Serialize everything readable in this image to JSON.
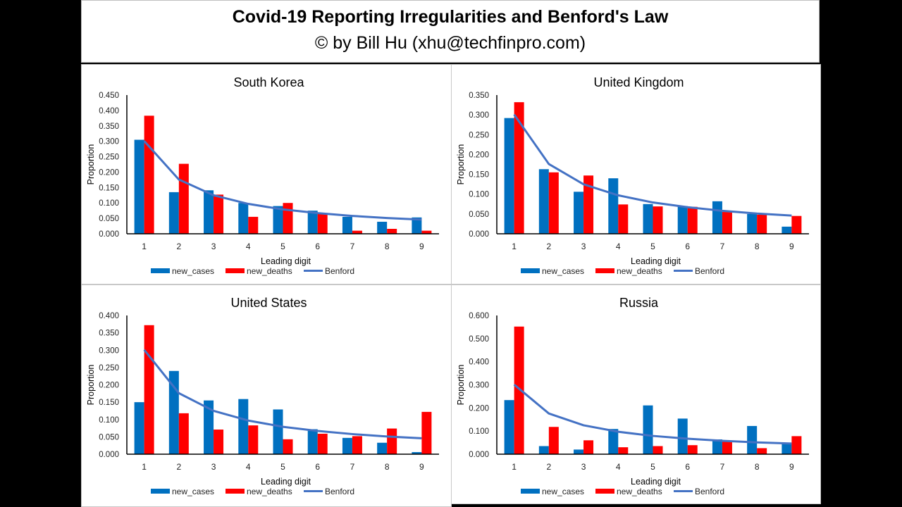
{
  "header": {
    "title": "Covid-19 Reporting Irregularities and Benford's Law",
    "subtitle": "© by Bill Hu (xhu@techfinpro.com)"
  },
  "colors": {
    "new_cases": "#0070C0",
    "new_deaths": "#FF0000",
    "Benford": "#4472C4"
  },
  "chart_data": [
    {
      "type": "bar",
      "title": "South Korea",
      "xlabel": "Leading digit",
      "ylabel": "Proportion",
      "categories": [
        "1",
        "2",
        "3",
        "4",
        "5",
        "6",
        "7",
        "8",
        "9"
      ],
      "ylim": [
        0,
        0.45
      ],
      "yticks": [
        "0.000",
        "0.050",
        "0.100",
        "0.150",
        "0.200",
        "0.250",
        "0.300",
        "0.350",
        "0.400",
        "0.450"
      ],
      "legend": "bottom",
      "series": [
        {
          "name": "new_cases",
          "kind": "bar",
          "values": [
            0.305,
            0.135,
            0.141,
            0.1,
            0.09,
            0.075,
            0.055,
            0.039,
            0.053
          ]
        },
        {
          "name": "new_deaths",
          "kind": "bar",
          "values": [
            0.383,
            0.227,
            0.127,
            0.055,
            0.1,
            0.065,
            0.01,
            0.016,
            0.01
          ]
        },
        {
          "name": "Benford",
          "kind": "line",
          "values": [
            0.301,
            0.176,
            0.125,
            0.097,
            0.079,
            0.067,
            0.058,
            0.051,
            0.046
          ]
        }
      ]
    },
    {
      "type": "bar",
      "title": "United Kingdom",
      "xlabel": "Leading digit",
      "ylabel": "Proportion",
      "categories": [
        "1",
        "2",
        "3",
        "4",
        "5",
        "6",
        "7",
        "8",
        "9"
      ],
      "ylim": [
        0,
        0.35
      ],
      "yticks": [
        "0.000",
        "0.050",
        "0.100",
        "0.150",
        "0.200",
        "0.250",
        "0.300",
        "0.350"
      ],
      "legend": "bottom",
      "series": [
        {
          "name": "new_cases",
          "kind": "bar",
          "values": [
            0.292,
            0.163,
            0.106,
            0.14,
            0.075,
            0.07,
            0.082,
            0.05,
            0.018
          ]
        },
        {
          "name": "new_deaths",
          "kind": "bar",
          "values": [
            0.332,
            0.155,
            0.147,
            0.074,
            0.069,
            0.068,
            0.055,
            0.048,
            0.045
          ]
        },
        {
          "name": "Benford",
          "kind": "line",
          "values": [
            0.301,
            0.176,
            0.125,
            0.097,
            0.079,
            0.067,
            0.058,
            0.051,
            0.046
          ]
        }
      ]
    },
    {
      "type": "bar",
      "title": "United States",
      "xlabel": "Leading digit",
      "ylabel": "Proportion",
      "categories": [
        "1",
        "2",
        "3",
        "4",
        "5",
        "6",
        "7",
        "8",
        "9"
      ],
      "ylim": [
        0,
        0.4
      ],
      "yticks": [
        "0.000",
        "0.050",
        "0.100",
        "0.150",
        "0.200",
        "0.250",
        "0.300",
        "0.350",
        "0.400"
      ],
      "legend": "bottom",
      "series": [
        {
          "name": "new_cases",
          "kind": "bar",
          "values": [
            0.15,
            0.24,
            0.155,
            0.159,
            0.129,
            0.072,
            0.047,
            0.033,
            0.006
          ]
        },
        {
          "name": "new_deaths",
          "kind": "bar",
          "values": [
            0.372,
            0.118,
            0.071,
            0.083,
            0.043,
            0.059,
            0.052,
            0.074,
            0.122
          ]
        },
        {
          "name": "Benford",
          "kind": "line",
          "values": [
            0.301,
            0.176,
            0.125,
            0.097,
            0.079,
            0.067,
            0.058,
            0.051,
            0.046
          ]
        }
      ]
    },
    {
      "type": "bar",
      "title": "Russia",
      "xlabel": "Leading digit",
      "ylabel": "Proportion",
      "categories": [
        "1",
        "2",
        "3",
        "4",
        "5",
        "6",
        "7",
        "8",
        "9"
      ],
      "ylim": [
        0,
        0.6
      ],
      "yticks": [
        "0.000",
        "0.100",
        "0.200",
        "0.300",
        "0.400",
        "0.500",
        "0.600"
      ],
      "legend": "bottom",
      "series": [
        {
          "name": "new_cases",
          "kind": "bar",
          "values": [
            0.234,
            0.035,
            0.02,
            0.109,
            0.211,
            0.154,
            0.064,
            0.122,
            0.045
          ]
        },
        {
          "name": "new_deaths",
          "kind": "bar",
          "values": [
            0.552,
            0.118,
            0.06,
            0.03,
            0.035,
            0.039,
            0.055,
            0.026,
            0.078
          ]
        },
        {
          "name": "Benford",
          "kind": "line",
          "values": [
            0.301,
            0.176,
            0.125,
            0.097,
            0.079,
            0.067,
            0.058,
            0.051,
            0.046
          ]
        }
      ]
    }
  ]
}
